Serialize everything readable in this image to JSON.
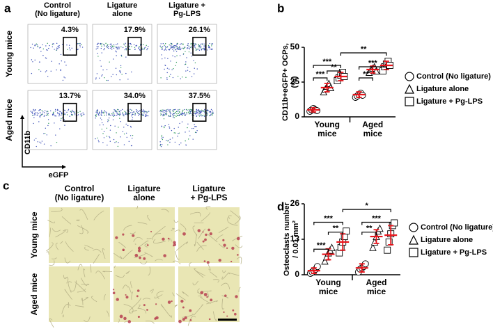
{
  "panel_labels": [
    "a",
    "b",
    "c",
    "d"
  ],
  "flow": {
    "columns": [
      [
        "Control",
        "(No ligature)"
      ],
      [
        "Ligature",
        "alone"
      ],
      [
        "Ligature +",
        "Pg-LPS"
      ]
    ],
    "rows": [
      "Young mice",
      "Aged mice"
    ],
    "gates": [
      [
        "4.3%",
        "17.9%",
        "26.1%"
      ],
      [
        "13.7%",
        "34.0%",
        "37.5%"
      ]
    ],
    "y_axis": "CD11b",
    "x_axis": "eGFP"
  },
  "histology": {
    "columns": [
      [
        "Control",
        "(No ligature)"
      ],
      [
        "Ligature",
        "alone"
      ],
      [
        "Ligature",
        "+ Pg-LPS"
      ]
    ],
    "rows": [
      "Young mice",
      "Aged mice"
    ]
  },
  "chart_data": [
    {
      "type": "scatter-dot",
      "ylabel": [
        "CD11b+eGFP+ OCPs,",
        "(%)"
      ],
      "categories": [
        [
          "Young",
          "mice"
        ],
        [
          "Aged",
          "mice"
        ]
      ],
      "mean_color": "#e8141b",
      "series": [
        {
          "name": "Control (No ligature)",
          "marker": "circle",
          "values": [
            5,
            16
          ],
          "errors": [
            1.5,
            2
          ],
          "points": [
            [
              4,
              5,
              6,
              5,
              4.5
            ],
            [
              14,
              15,
              16,
              17,
              15.5
            ]
          ]
        },
        {
          "name": "Ligature alone",
          "marker": "triangle",
          "values": [
            21,
            34
          ],
          "errors": [
            3,
            2.5
          ],
          "points": [
            [
              18,
              20,
              22,
              24,
              21
            ],
            [
              32,
              34,
              35,
              36,
              33
            ]
          ]
        },
        {
          "name": "Ligature + Pg-LPS",
          "marker": "square",
          "values": [
            29,
            37
          ],
          "errors": [
            3,
            3
          ],
          "points": [
            [
              26,
              28,
              30,
              32,
              29
            ],
            [
              33,
              36,
              38,
              40,
              37
            ]
          ]
        }
      ],
      "ylim": [
        0,
        50
      ],
      "yticks": [
        0,
        25,
        50
      ],
      "significance": [
        "***",
        "***",
        "**",
        "**",
        "***",
        "**"
      ]
    },
    {
      "type": "scatter-dot",
      "ylabel": [
        "Osteoclasts number",
        "/ 0.01 mm²"
      ],
      "categories": [
        [
          "Young",
          "mice"
        ],
        [
          "Aged",
          "mice"
        ]
      ],
      "mean_color": "#e8141b",
      "series": [
        {
          "name": "Control (No ligature)",
          "marker": "circle",
          "values": [
            1.5,
            2.5
          ],
          "errors": [
            1,
            1.5
          ],
          "points": [
            [
              0.5,
              1,
              1.5,
              2,
              3
            ],
            [
              1,
              2,
              2.5,
              3,
              4
            ]
          ]
        },
        {
          "name": "Ligature alone",
          "marker": "triangle",
          "values": [
            7.5,
            14
          ],
          "errors": [
            2,
            2.5
          ],
          "points": [
            [
              5,
              6.5,
              8,
              9,
              10
            ],
            [
              10,
              12,
              14,
              16,
              17
            ]
          ]
        },
        {
          "name": "Ligature + Pg-LPS",
          "marker": "square",
          "values": [
            12,
            14.5
          ],
          "errors": [
            3,
            3.5
          ],
          "points": [
            [
              8,
              10,
              12,
              14,
              16
            ],
            [
              9,
              12,
              15,
              18,
              19
            ]
          ]
        }
      ],
      "ylim": [
        0,
        26
      ],
      "yticks": [
        0,
        13,
        26
      ],
      "significance": [
        "***",
        "***",
        "**",
        "**",
        "***",
        "*"
      ]
    }
  ]
}
